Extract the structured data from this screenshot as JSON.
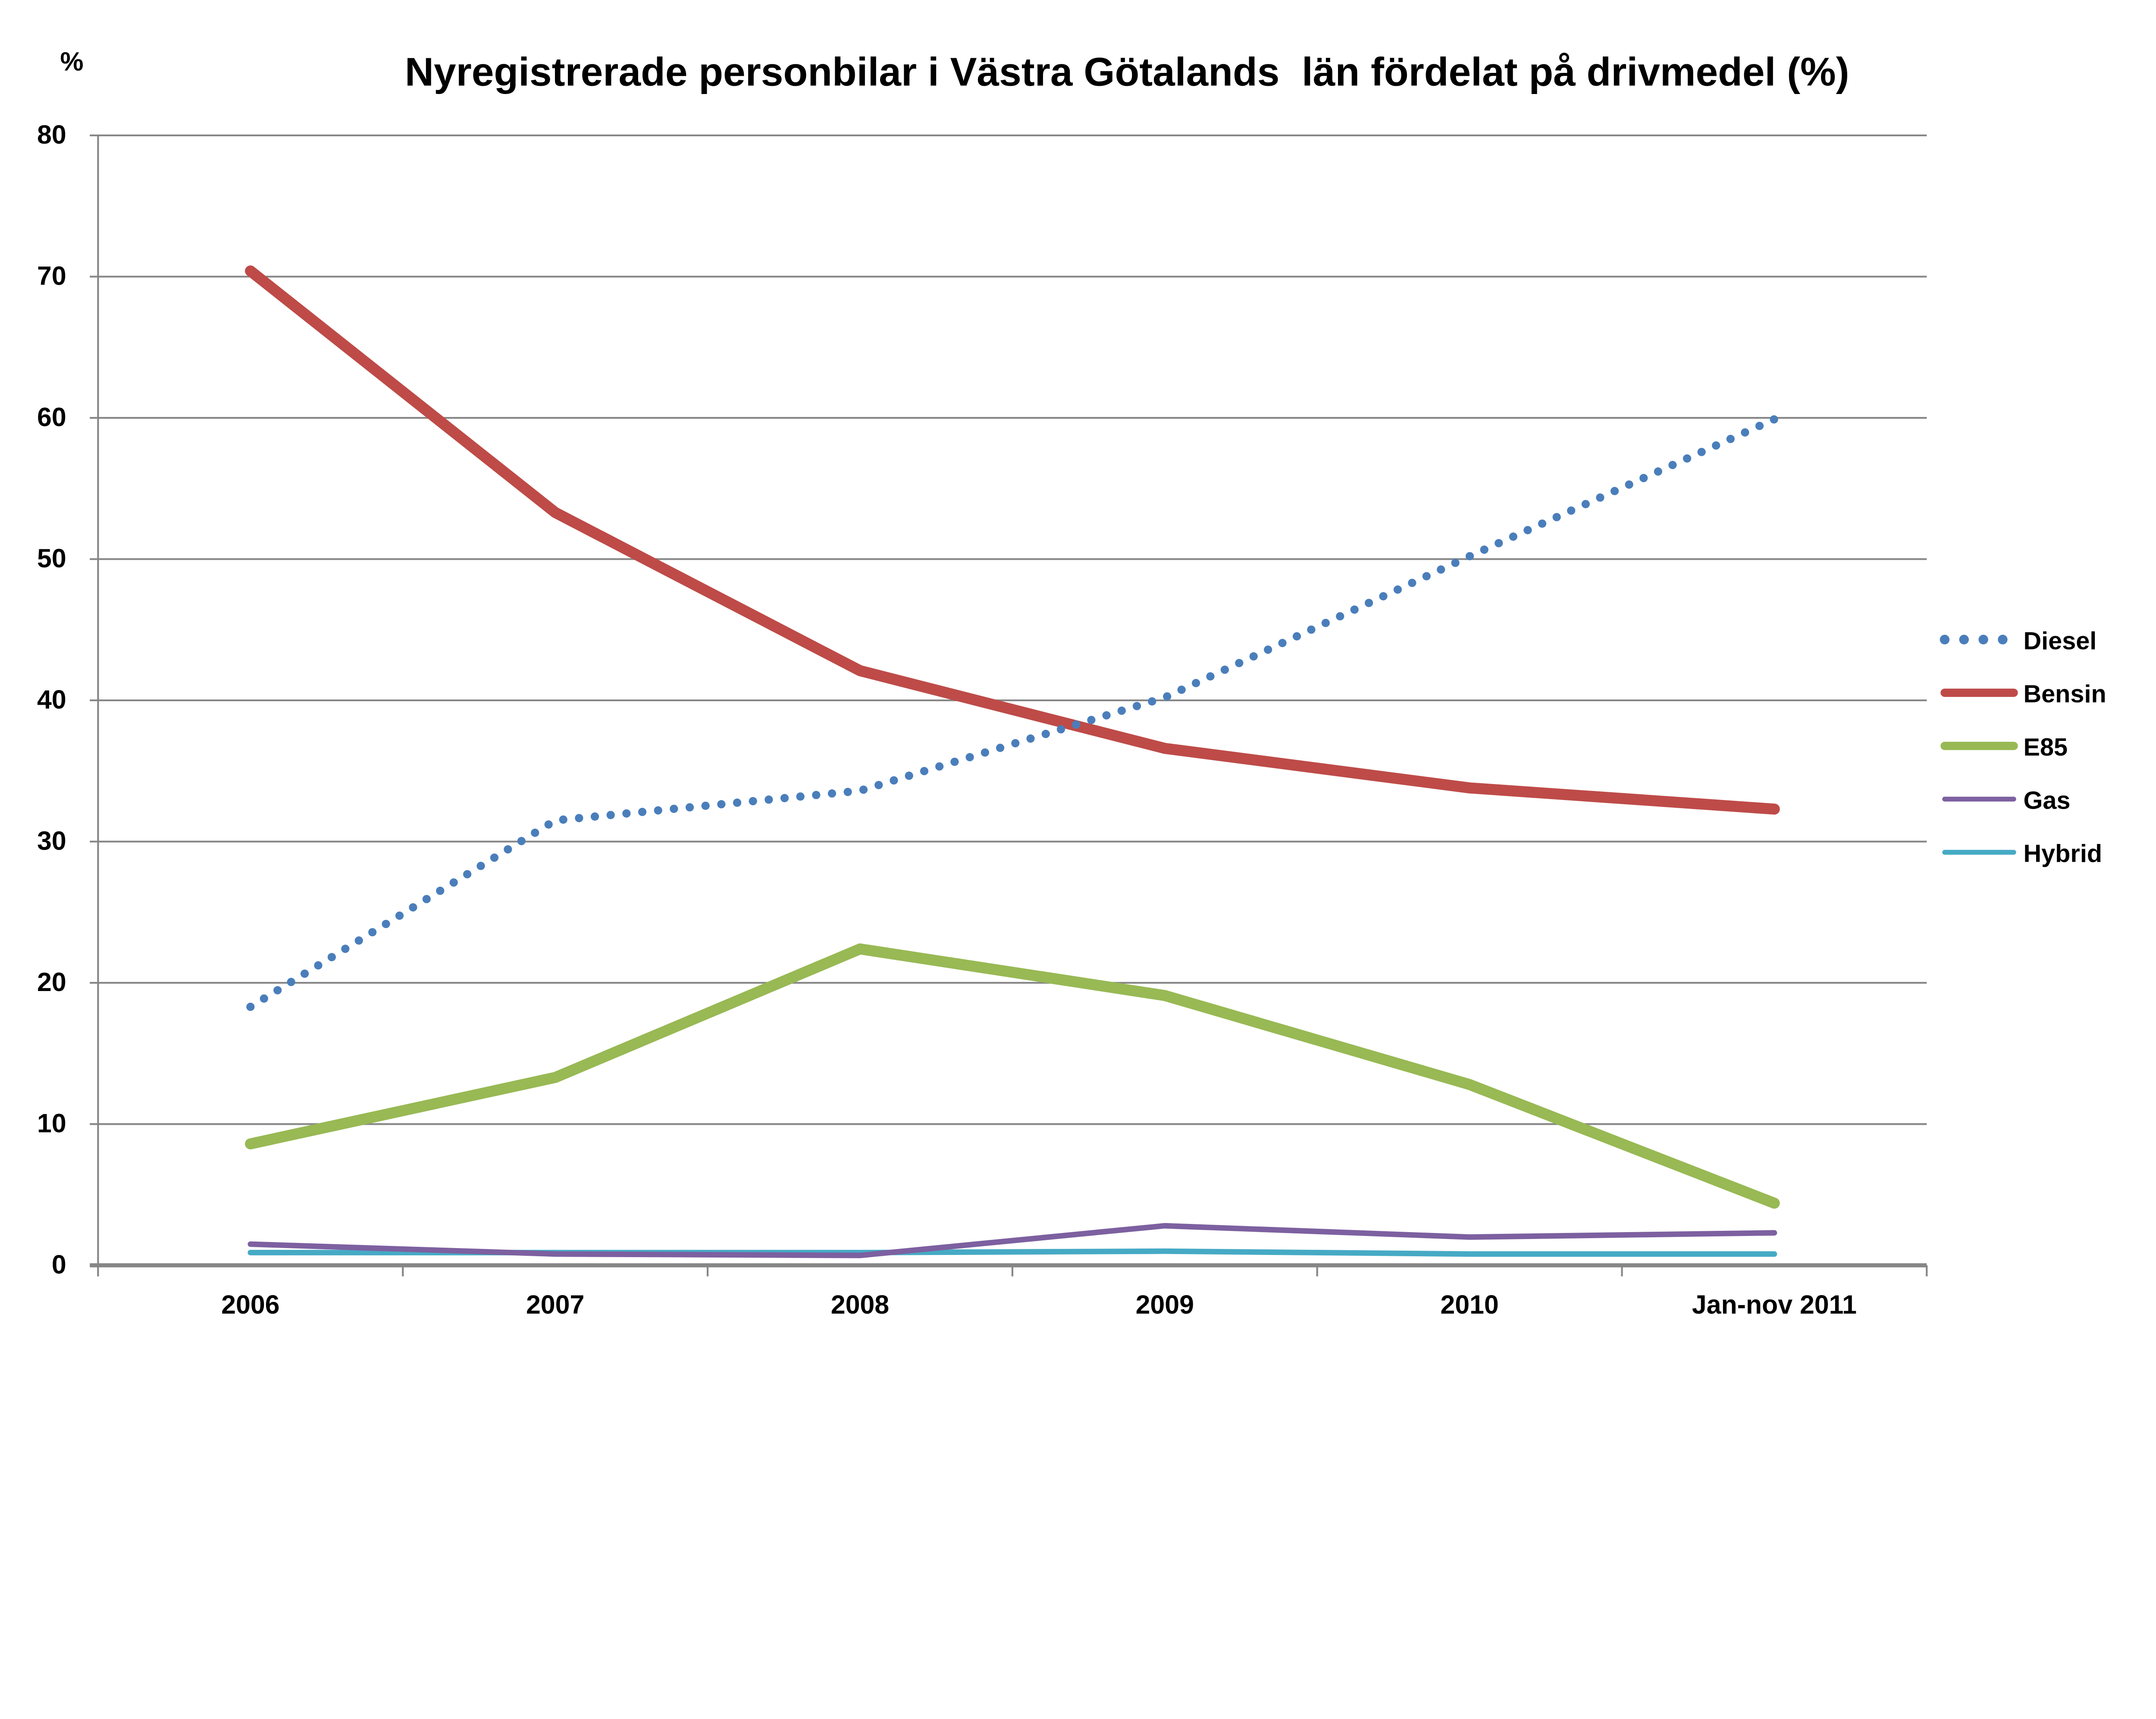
{
  "chart_data": {
    "type": "line",
    "title": "Nyregistrerade personbilar i Västra Götalands  län fördelat på drivmedel (%)",
    "ylabel": "%",
    "xlabel": "",
    "ylim": [
      0,
      80
    ],
    "yticks": [
      "0",
      "10",
      "20",
      "30",
      "40",
      "50",
      "60",
      "70",
      "80"
    ],
    "grid": true,
    "legend_position": "right",
    "categories": [
      "2006",
      "2007",
      "2008",
      "2009",
      "2010",
      "Jan-nov 2011"
    ],
    "series": [
      {
        "name": "Diesel",
        "color": "#4A7EBB",
        "style": "dotted",
        "values": [
          18.3,
          31.5,
          33.6,
          40.2,
          50.2,
          59.9
        ]
      },
      {
        "name": "Bensin",
        "color": "#BE4B48",
        "style": "solid-thick",
        "values": [
          70.4,
          53.3,
          42.1,
          36.6,
          33.8,
          32.3
        ]
      },
      {
        "name": "E85",
        "color": "#98B954",
        "style": "solid-thick",
        "values": [
          8.6,
          13.3,
          22.4,
          19.1,
          12.8,
          4.4
        ]
      },
      {
        "name": "Gas",
        "color": "#7D60A0",
        "style": "solid",
        "values": [
          1.5,
          0.8,
          0.7,
          2.8,
          2.0,
          2.3
        ]
      },
      {
        "name": "Hybrid",
        "color": "#46AAC5",
        "style": "solid",
        "values": [
          0.9,
          0.9,
          0.9,
          1.0,
          0.8,
          0.8
        ]
      }
    ]
  }
}
